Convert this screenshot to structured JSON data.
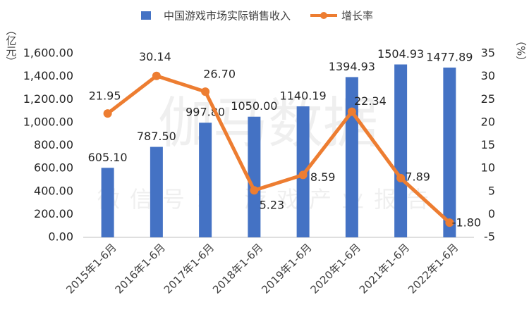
{
  "chart_data": {
    "type": "bar",
    "legend": "top",
    "watermark": "伽马数据",
    "watermark_sub": "微信号： 游戏产业报告",
    "y_label": "（亿元）",
    "y2_label": "（%）",
    "categories": [
      "2015年1-6月",
      "2016年1-6月",
      "2017年1-6月",
      "2018年1-6月",
      "2019年1-6月",
      "2020年1-6月",
      "2021年1-6月",
      "2022年1-6月"
    ],
    "series": [
      {
        "name": "中国游戏市场实际销售收入",
        "type": "bar",
        "color": "#4472c4",
        "values": [
          605.1,
          787.5,
          997.8,
          1050,
          1140.19,
          1394.93,
          1504.93,
          1477.89
        ],
        "value_labels": [
          "605.10",
          "787.50",
          "997.80",
          "1050.00",
          "1140.19",
          "1394.93",
          "1504.93",
          "1477.89"
        ]
      },
      {
        "name": "增长率",
        "type": "line",
        "axis": "y2",
        "color": "#ed7d31",
        "values": [
          21.95,
          30.14,
          26.7,
          5.23,
          8.59,
          22.34,
          7.89,
          -1.8
        ],
        "value_labels": [
          "21.95",
          "30.14",
          "26.70",
          "5.23",
          "8.59",
          "22.34",
          "7.89",
          "-1.80"
        ]
      }
    ],
    "ylim": [
      0,
      1600
    ],
    "yticks": [
      {
        "value": 0,
        "label": "0.00"
      },
      {
        "value": 200,
        "label": "200.00"
      },
      {
        "value": 400,
        "label": "400.00"
      },
      {
        "value": 600,
        "label": "600.00"
      },
      {
        "value": 800,
        "label": "800.00"
      },
      {
        "value": 1000,
        "label": "1,000.00"
      },
      {
        "value": 1200,
        "label": "1,200.00"
      },
      {
        "value": 1400,
        "label": "1,400.00"
      },
      {
        "value": 1600,
        "label": "1,600.00"
      }
    ],
    "y2lim": [
      -5,
      35
    ],
    "y2ticks": [
      -5,
      0,
      5,
      10,
      15,
      20,
      25,
      30,
      35
    ]
  }
}
